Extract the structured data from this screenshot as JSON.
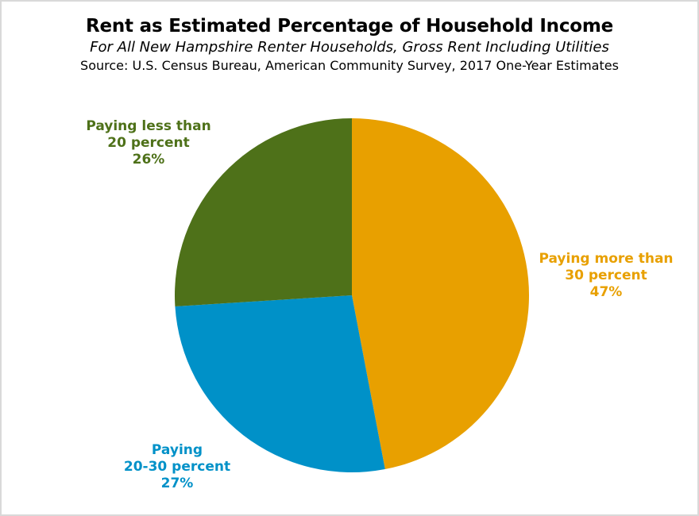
{
  "chart_data": {
    "type": "pie",
    "title": "Rent as Estimated Percentage of Household Income",
    "subtitle": "For All New Hampshire Renter Households, Gross Rent Including Utilities",
    "source": "Source: U.S. Census Bureau, American Community Survey, 2017 One-Year Estimates",
    "legend": "none",
    "label_style": "external colored callouts with percentages",
    "start_angle_deg": 0,
    "direction": "clockwise",
    "background_color": "#ffffff",
    "slices": [
      {
        "name": "paying-more-than-30-percent",
        "label_line1": "Paying more than",
        "label_line2": "30 percent",
        "pct_label": "47%",
        "value": 47,
        "color": "#E8A000"
      },
      {
        "name": "paying-20-30-percent",
        "label_line1": "Paying",
        "label_line2": "20-30 percent",
        "pct_label": "27%",
        "value": 27,
        "color": "#0091C8"
      },
      {
        "name": "paying-less-than-20-percent",
        "label_line1": "Paying less than",
        "label_line2": "20 percent",
        "pct_label": "26%",
        "value": 26,
        "color": "#4E7119"
      }
    ]
  }
}
